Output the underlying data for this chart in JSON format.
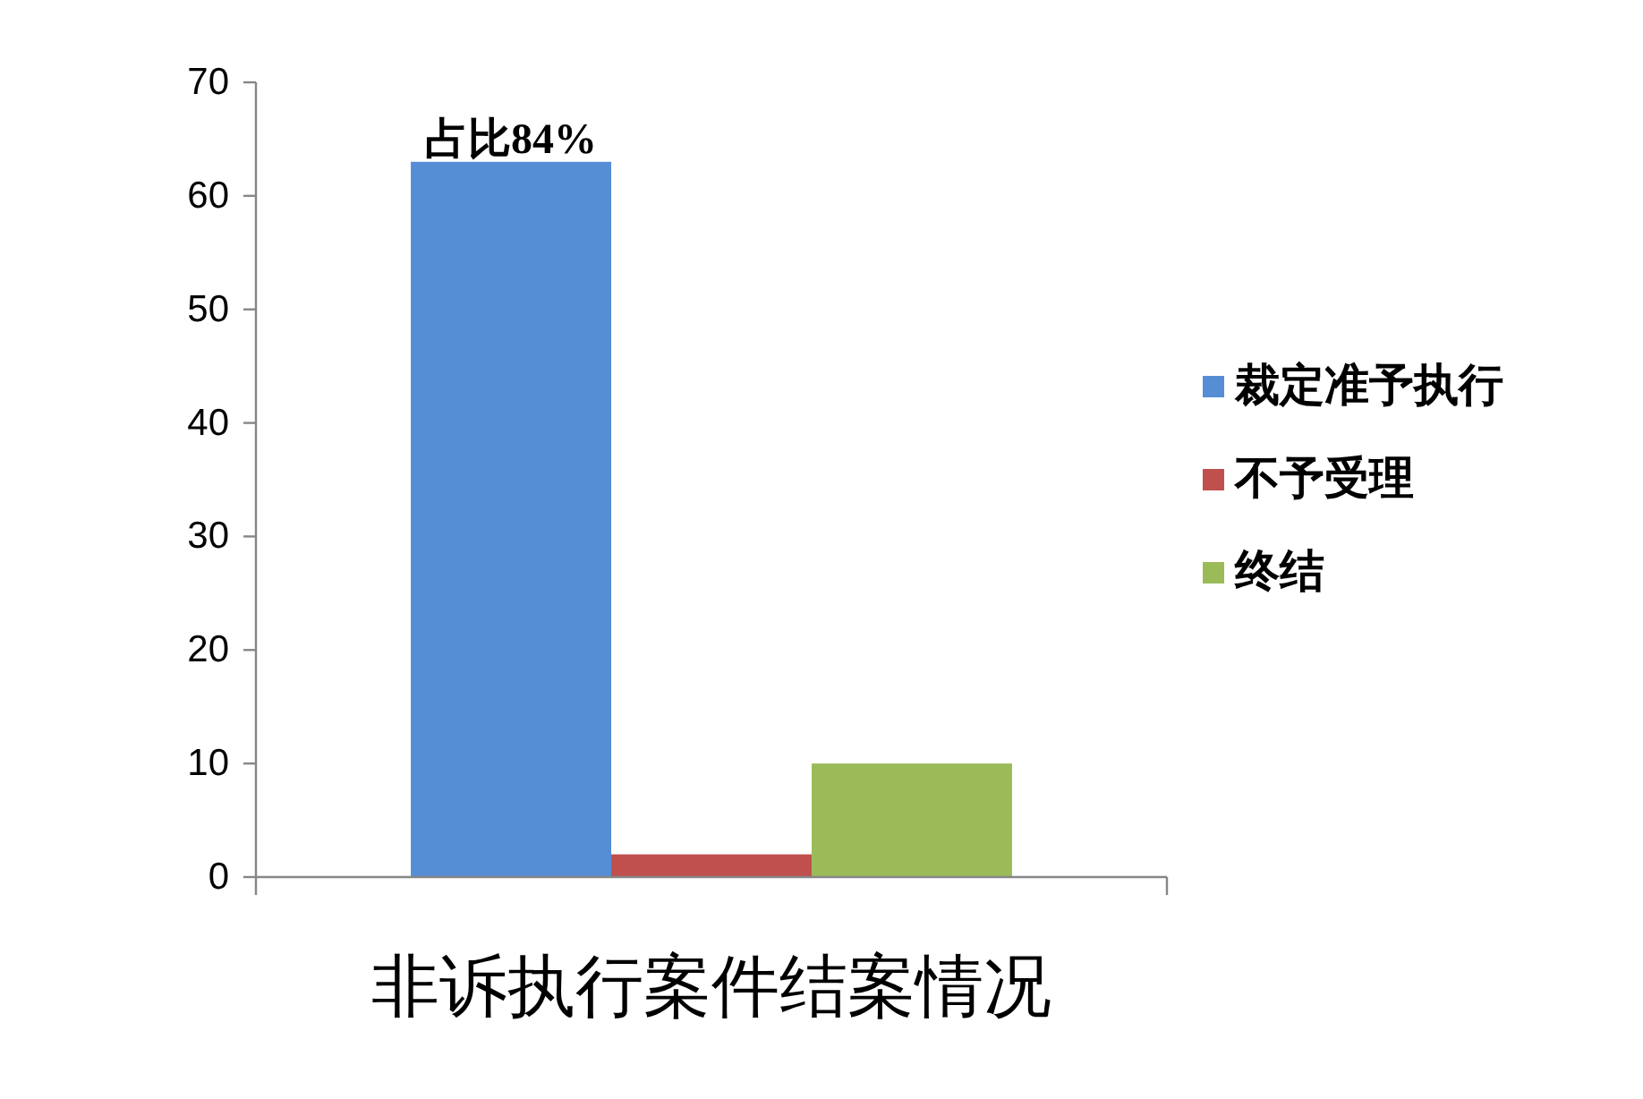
{
  "chart_data": {
    "type": "bar",
    "categories": [
      "非诉执行案件结案情况"
    ],
    "series": [
      {
        "name": "裁定准予执行",
        "color": "#558ed5",
        "values": [
          63
        ]
      },
      {
        "name": "不予受理",
        "color": "#c0504d",
        "values": [
          2
        ]
      },
      {
        "name": "终结",
        "color": "#9bbb59",
        "values": [
          10
        ]
      }
    ],
    "ylim": [
      0,
      70
    ],
    "yticks": [
      0,
      10,
      20,
      30,
      40,
      50,
      60,
      70
    ],
    "annotations": [
      "占比84%"
    ],
    "grid": false,
    "legend": "right"
  }
}
